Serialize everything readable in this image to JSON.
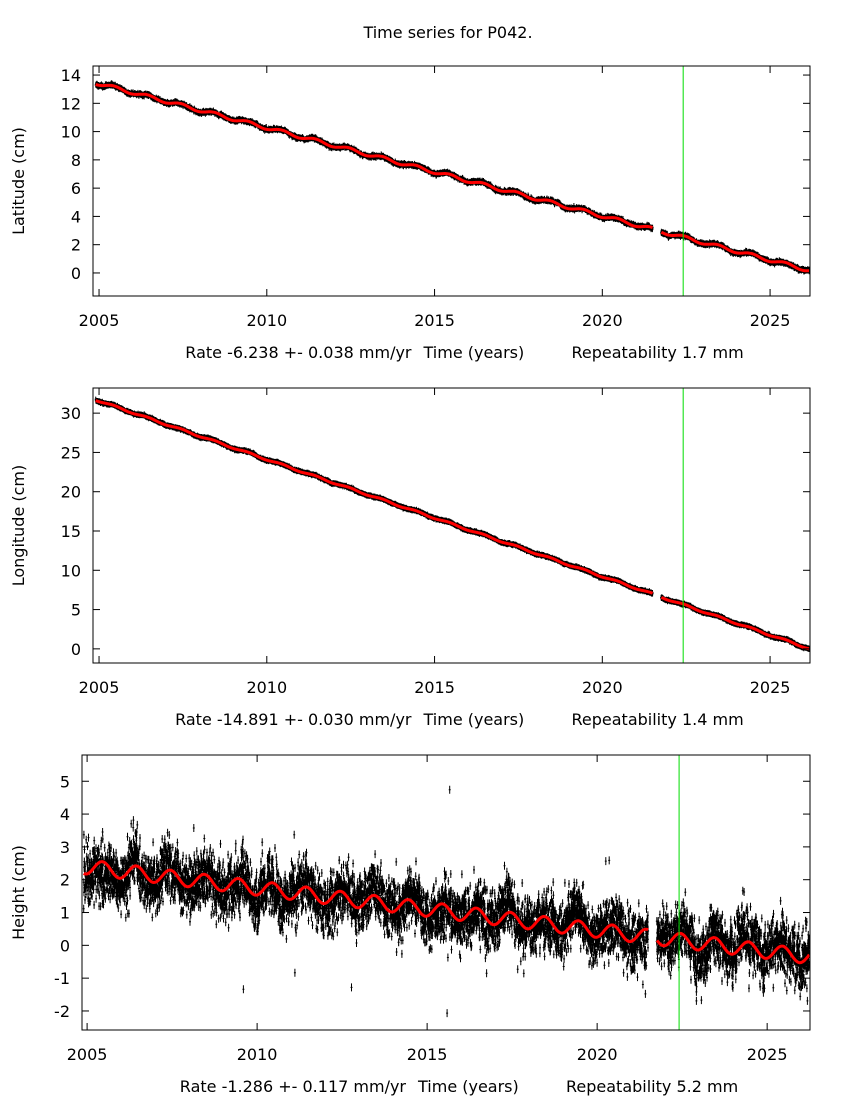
{
  "title": "Time series for P042.",
  "chart_data": [
    {
      "type": "scatter",
      "ylabel": "Latitude (cm)",
      "xlabel": "Time (years)",
      "rate_text": "Rate -6.238 +- 0.038 mm/yr",
      "repeatability_text": "Repeatability 1.7 mm",
      "xlim": [
        2004.82,
        2026.19
      ],
      "ylim": [
        -1.63,
        14.64
      ],
      "xticks": [
        "2005",
        "2010",
        "2015",
        "2020",
        "2025"
      ],
      "yticks": [
        "0",
        "2",
        "4",
        "6",
        "8",
        "10",
        "12",
        "14"
      ],
      "fit": {
        "start": [
          2004.9,
          13.45
        ],
        "rate_cm_per_yr": -0.6238,
        "seasonal_amplitude_cm": 0.12
      },
      "data_gap": [
        2021.5,
        2021.75
      ],
      "event_line_year": 2022.41,
      "colors": {
        "data": "#000000",
        "fit": "#ff0000",
        "event": "#00dd00"
      }
    },
    {
      "type": "scatter",
      "ylabel": "Longitude (cm)",
      "xlabel": "Time (years)",
      "rate_text": "Rate -14.891 +- 0.030 mm/yr",
      "repeatability_text": "Repeatability 1.4 mm",
      "xlim": [
        2004.82,
        2026.19
      ],
      "ylim": [
        -1.8,
        33.2
      ],
      "xticks": [
        "2005",
        "2010",
        "2015",
        "2020",
        "2025"
      ],
      "yticks": [
        "0",
        "5",
        "10",
        "15",
        "20",
        "25",
        "30"
      ],
      "fit": {
        "start": [
          2004.9,
          31.7
        ],
        "rate_cm_per_yr": -1.4891,
        "seasonal_amplitude_cm": 0.1
      },
      "data_gap": [
        2021.5,
        2021.75
      ],
      "event_line_year": 2022.41,
      "colors": {
        "data": "#000000",
        "fit": "#ff0000",
        "event": "#00dd00"
      }
    },
    {
      "type": "scatter",
      "ylabel": "Height (cm)",
      "xlabel": "Time (years)",
      "rate_text": "Rate -1.286 +- 0.117 mm/yr",
      "repeatability_text": "Repeatability 5.2 mm",
      "xlim": [
        2004.85,
        2026.26
      ],
      "ylim": [
        -2.58,
        5.8
      ],
      "xticks": [
        "2005",
        "2010",
        "2015",
        "2020",
        "2025"
      ],
      "yticks": [
        "-2",
        "-1",
        "0",
        "1",
        "2",
        "3",
        "4",
        "5"
      ],
      "fit": {
        "start": [
          2004.9,
          2.4
        ],
        "rate_cm_per_yr": -0.1286,
        "seasonal_amplitude_cm": 0.22
      },
      "data_gap": [
        2021.5,
        2021.75
      ],
      "event_line_year": 2022.41,
      "colors": {
        "data": "#000000",
        "fit": "#ff0000",
        "event": "#00dd00"
      }
    }
  ]
}
